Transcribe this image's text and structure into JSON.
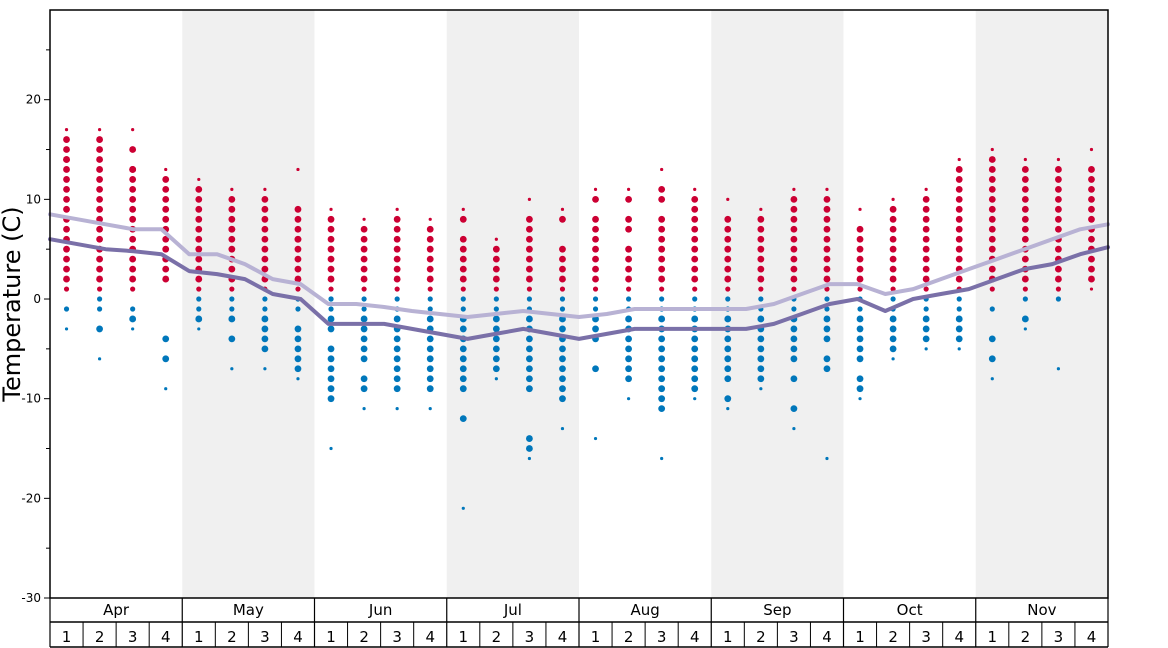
{
  "chart_data": {
    "type": "scatter",
    "title": "",
    "xlabel": "",
    "ylabel": "Temperature (C)",
    "ylim": [
      -30,
      29
    ],
    "y_ticks": [
      "-30",
      "-20",
      "-10",
      "0",
      "10",
      "20"
    ],
    "months": [
      "Apr",
      "May",
      "Jun",
      "Jul",
      "Aug",
      "Sep",
      "Oct",
      "Nov"
    ],
    "weeks": [
      "1",
      "2",
      "3",
      "4"
    ],
    "colors": {
      "warm_dots": "#cc0033",
      "cold_dots": "#0077bb",
      "max_line": "#b8b2d4",
      "min_line": "#7a70a8",
      "band": "#f0f0f0"
    },
    "series": [
      {
        "name": "average max temperature",
        "values": [
          8.5,
          8.0,
          7.5,
          7.0,
          7.0,
          4.5,
          4.5,
          3.5,
          2.0,
          1.5,
          -0.5,
          -0.5,
          -0.8,
          -1.2,
          -1.5,
          -1.8,
          -1.5,
          -1.2,
          -1.5,
          -1.8,
          -1.5,
          -1.0,
          -1.0,
          -1.0,
          -1.0,
          -1.0,
          -0.5,
          0.5,
          1.5,
          1.5,
          0.5,
          1.0,
          2.0,
          3.0,
          4.0,
          5.0,
          6.0,
          7.0,
          7.5
        ]
      },
      {
        "name": "average min temperature",
        "values": [
          6.0,
          5.5,
          5.0,
          4.8,
          4.5,
          2.8,
          2.5,
          2.0,
          0.5,
          0.0,
          -2.5,
          -2.5,
          -2.5,
          -3.0,
          -3.5,
          -4.0,
          -3.5,
          -3.0,
          -3.5,
          -4.0,
          -3.5,
          -3.0,
          -3.0,
          -3.0,
          -3.0,
          -3.0,
          -2.5,
          -1.5,
          -0.5,
          0.0,
          -1.2,
          0.0,
          0.5,
          1.0,
          2.0,
          3.0,
          3.5,
          4.5,
          5.2
        ]
      }
    ],
    "observations": [
      {
        "week": 1,
        "temps": [
          17,
          16,
          15,
          14,
          14,
          13,
          12,
          11,
          10,
          9,
          8,
          7,
          6,
          5,
          4,
          3,
          2,
          1,
          -1,
          -3
        ]
      },
      {
        "week": 2,
        "temps": [
          17,
          16,
          15,
          14,
          13,
          12,
          11,
          10,
          9,
          8,
          7,
          6,
          5,
          4,
          3,
          2,
          1,
          0,
          -1,
          -3,
          -6
        ]
      },
      {
        "week": 3,
        "temps": [
          17,
          15,
          13,
          13,
          12,
          11,
          10,
          9,
          8,
          7,
          6,
          5,
          4,
          3,
          2,
          1,
          -1,
          -2,
          -3
        ]
      },
      {
        "week": 4,
        "temps": [
          13,
          12,
          11,
          10,
          9,
          8,
          7,
          6,
          5,
          4,
          3,
          2,
          -4,
          -6,
          -9
        ]
      },
      {
        "week": 5,
        "temps": [
          12,
          11,
          10,
          9,
          8,
          7,
          6,
          5,
          4,
          3,
          2,
          1,
          0,
          -1,
          -2,
          -3
        ]
      },
      {
        "week": 6,
        "temps": [
          11,
          10,
          9,
          8,
          7,
          7,
          6,
          5,
          4,
          3,
          2,
          1,
          0,
          -1,
          -2,
          -4,
          -7
        ]
      },
      {
        "week": 7,
        "temps": [
          11,
          10,
          9,
          8,
          7,
          6,
          5,
          4,
          3,
          2,
          1,
          0,
          -1,
          -2,
          -3,
          -4,
          -5,
          -7
        ]
      },
      {
        "week": 8,
        "temps": [
          13,
          9,
          8,
          7,
          6,
          6,
          5,
          4,
          3,
          2,
          1,
          0,
          -1,
          -3,
          -4,
          -5,
          -6,
          -7,
          -8
        ]
      },
      {
        "week": 9,
        "temps": [
          9,
          8,
          7,
          6,
          5,
          4,
          3,
          2,
          1,
          0,
          0,
          -1,
          -2,
          -3,
          -5,
          -6,
          -7,
          -8,
          -9,
          -10,
          -15
        ]
      },
      {
        "week": 10,
        "temps": [
          8,
          7,
          6,
          5,
          4,
          3,
          2,
          1,
          0,
          -1,
          -2,
          -3,
          -4,
          -5,
          -6,
          -8,
          -9,
          -11
        ]
      },
      {
        "week": 11,
        "temps": [
          9,
          8,
          7,
          6,
          5,
          4,
          3,
          2,
          1,
          0,
          -1,
          -2,
          -3,
          -4,
          -5,
          -6,
          -7,
          -8,
          -9,
          -11
        ]
      },
      {
        "week": 12,
        "temps": [
          8,
          7,
          6,
          5,
          4,
          3,
          2,
          1,
          0,
          -1,
          -2,
          -3,
          -4,
          -5,
          -6,
          -7,
          -8,
          -9,
          -11
        ]
      },
      {
        "week": 13,
        "temps": [
          9,
          8,
          6,
          5,
          4,
          3,
          2,
          1,
          0,
          -1,
          -2,
          -3,
          -4,
          -5,
          -6,
          -7,
          -8,
          -9,
          -12,
          -21
        ]
      },
      {
        "week": 14,
        "temps": [
          6,
          5,
          4,
          3,
          2,
          1,
          0,
          -1,
          -2,
          -3,
          -4,
          -5,
          -6,
          -7,
          -8
        ]
      },
      {
        "week": 15,
        "temps": [
          10,
          8,
          7,
          6,
          5,
          4,
          3,
          2,
          1,
          0,
          -1,
          -2,
          -3,
          -4,
          -5,
          -6,
          -7,
          -8,
          -9,
          -14,
          -15,
          -16
        ]
      },
      {
        "week": 16,
        "temps": [
          9,
          8,
          5,
          4,
          3,
          2,
          1,
          0,
          -1,
          -2,
          -3,
          -4,
          -5,
          -6,
          -7,
          -8,
          -9,
          -10,
          -13
        ]
      },
      {
        "week": 17,
        "temps": [
          11,
          10,
          8,
          7,
          6,
          5,
          4,
          3,
          2,
          1,
          0,
          -1,
          -2,
          -3,
          -4,
          -7,
          -14
        ]
      },
      {
        "week": 18,
        "temps": [
          11,
          10,
          8,
          7,
          5,
          4,
          3,
          2,
          1,
          0,
          -1,
          -2,
          -3,
          -4,
          -5,
          -6,
          -7,
          -8,
          -10
        ]
      },
      {
        "week": 19,
        "temps": [
          13,
          11,
          10,
          8,
          7,
          6,
          5,
          4,
          3,
          2,
          1,
          0,
          -1,
          -2,
          -3,
          -4,
          -5,
          -6,
          -7,
          -8,
          -9,
          -10,
          -11,
          -16
        ]
      },
      {
        "week": 20,
        "temps": [
          11,
          10,
          9,
          8,
          7,
          6,
          5,
          4,
          3,
          2,
          1,
          0,
          -1,
          -2,
          -3,
          -4,
          -5,
          -6,
          -7,
          -8,
          -9,
          -10
        ]
      },
      {
        "week": 21,
        "temps": [
          10,
          8,
          7,
          6,
          5,
          4,
          3,
          2,
          1,
          0,
          -1,
          -2,
          -3,
          -4,
          -5,
          -6,
          -7,
          -8,
          -10,
          -11
        ]
      },
      {
        "week": 22,
        "temps": [
          9,
          8,
          7,
          6,
          5,
          4,
          3,
          2,
          1,
          0,
          -1,
          -2,
          -3,
          -4,
          -5,
          -6,
          -7,
          -8,
          -9
        ]
      },
      {
        "week": 23,
        "temps": [
          11,
          10,
          9,
          8,
          7,
          6,
          5,
          4,
          3,
          2,
          1,
          0,
          -1,
          -2,
          -3,
          -4,
          -5,
          -6,
          -8,
          -11,
          -13
        ]
      },
      {
        "week": 24,
        "temps": [
          11,
          10,
          9,
          8,
          7,
          6,
          5,
          4,
          3,
          2,
          1,
          0,
          -1,
          -2,
          -3,
          -4,
          -6,
          -7,
          -16
        ]
      },
      {
        "week": 25,
        "temps": [
          9,
          7,
          6,
          5,
          4,
          3,
          2,
          1,
          0,
          -1,
          -2,
          -3,
          -4,
          -5,
          -6,
          -8,
          -9,
          -10
        ]
      },
      {
        "week": 26,
        "temps": [
          10,
          9,
          8,
          7,
          6,
          5,
          4,
          3,
          2,
          1,
          0,
          -1,
          -2,
          -3,
          -4,
          -5,
          -6
        ]
      },
      {
        "week": 27,
        "temps": [
          11,
          10,
          9,
          8,
          7,
          6,
          5,
          4,
          3,
          2,
          1,
          0,
          -1,
          -2,
          -3,
          -4,
          -5
        ]
      },
      {
        "week": 28,
        "temps": [
          14,
          13,
          12,
          11,
          10,
          9,
          8,
          7,
          6,
          5,
          4,
          3,
          2,
          1,
          0,
          -1,
          -2,
          -3,
          -4,
          -5
        ]
      },
      {
        "week": 29,
        "temps": [
          15,
          14,
          13,
          12,
          11,
          10,
          9,
          8,
          7,
          6,
          5,
          4,
          3,
          2,
          1,
          -1,
          -4,
          -6,
          -8
        ]
      },
      {
        "week": 30,
        "temps": [
          14,
          13,
          12,
          11,
          10,
          9,
          8,
          7,
          6,
          5,
          4,
          3,
          2,
          1,
          0,
          -2,
          -3
        ]
      },
      {
        "week": 31,
        "temps": [
          14,
          13,
          12,
          11,
          10,
          9,
          8,
          7,
          6,
          5,
          4,
          3,
          2,
          1,
          0,
          -7
        ]
      },
      {
        "week": 32,
        "temps": [
          15,
          13,
          12,
          11,
          10,
          9,
          8,
          7,
          6,
          5,
          4,
          3,
          2,
          1
        ]
      }
    ]
  }
}
